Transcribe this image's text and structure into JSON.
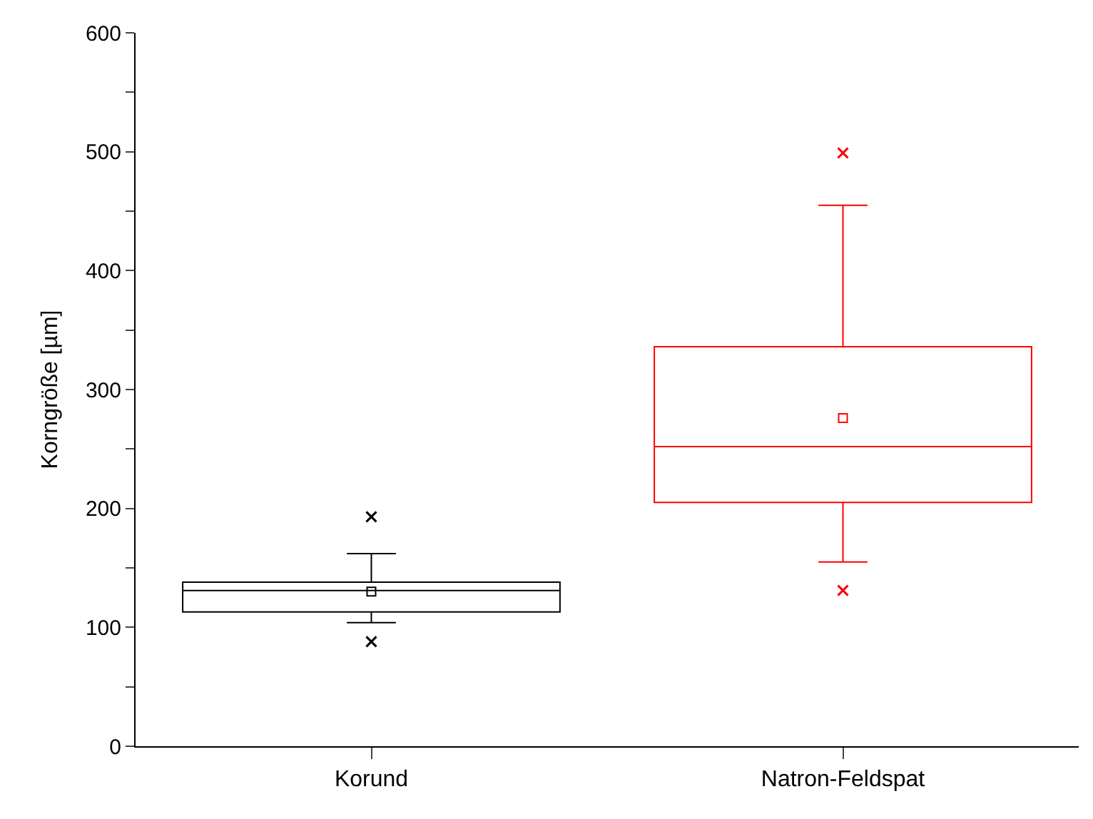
{
  "chart_data": {
    "type": "box",
    "ylabel": "Korngröße [µm]",
    "categories": [
      "Korund",
      "Natron-Feldspat"
    ],
    "boxes": [
      {
        "low": 104,
        "q1": 113,
        "median": 131,
        "q3": 138,
        "high": 162,
        "mean": 130,
        "outliers": [
          193,
          88
        ]
      },
      {
        "low": 155,
        "q1": 205,
        "median": 252,
        "q3": 336,
        "high": 455,
        "mean": 276,
        "outliers": [
          499,
          131
        ]
      }
    ],
    "colors": [
      "#000000",
      "#ff0000"
    ],
    "ylim": [
      0,
      600
    ],
    "yticks": [
      0,
      {
        "value": 50,
        "label": null
      },
      100,
      {
        "value": 150,
        "label": null
      },
      200,
      {
        "value": 250,
        "label": null
      },
      300,
      {
        "value": 350,
        "label": null
      },
      400,
      {
        "value": 450,
        "label": null
      },
      500,
      {
        "value": 550,
        "label": null
      },
      600
    ],
    "marker": "square"
  }
}
